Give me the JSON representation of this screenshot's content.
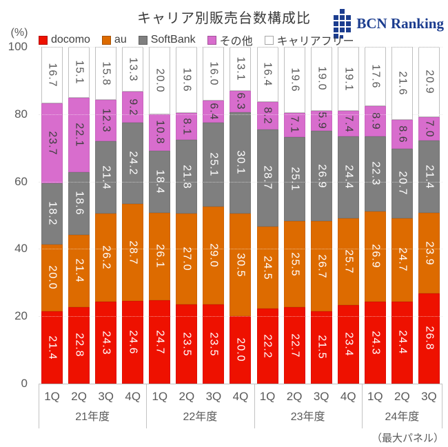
{
  "logo": {
    "text": "BCN Ranking",
    "color": "#1c3d8f"
  },
  "chart_data": {
    "type": "bar",
    "stacked": true,
    "title": "キャリア別販売台数構成比",
    "ylabel": "(%)",
    "ylim": [
      0,
      100
    ],
    "yticks": [
      100,
      80,
      60,
      40,
      20,
      0
    ],
    "grid": "horizontal-dotted",
    "legend_position": "top",
    "groups": [
      {
        "label": "21年度",
        "quarters": [
          "1Q",
          "2Q",
          "3Q",
          "4Q"
        ]
      },
      {
        "label": "22年度",
        "quarters": [
          "1Q",
          "2Q",
          "3Q",
          "4Q"
        ]
      },
      {
        "label": "23年度",
        "quarters": [
          "1Q",
          "2Q",
          "3Q",
          "4Q"
        ]
      },
      {
        "label": "24年度",
        "quarters": [
          "1Q",
          "2Q",
          "3Q"
        ]
      }
    ],
    "series": [
      {
        "name": "docomo",
        "color": "#ee1100",
        "label_color": "#ffffff",
        "values": [
          21.4,
          22.8,
          24.3,
          24.6,
          24.7,
          23.5,
          23.5,
          20.0,
          22.2,
          22.7,
          21.5,
          23.4,
          24.3,
          24.4,
          26.8
        ]
      },
      {
        "name": "au",
        "color": "#dd6b00",
        "label_color": "#ffffff",
        "values": [
          20.0,
          21.4,
          26.2,
          28.7,
          26.1,
          27.0,
          29.0,
          30.5,
          24.5,
          25.5,
          26.7,
          25.7,
          26.9,
          24.7,
          23.9
        ]
      },
      {
        "name": "SoftBank",
        "color": "#7f7f7f",
        "label_color": "#ffffff",
        "values": [
          18.2,
          18.6,
          21.4,
          24.2,
          18.4,
          21.8,
          25.1,
          30.1,
          28.7,
          25.1,
          26.9,
          24.4,
          22.3,
          20.7,
          21.4
        ]
      },
      {
        "name": "その他",
        "color": "#d86dcd",
        "label_color": "#3d3d3d",
        "values": [
          23.7,
          22.1,
          12.3,
          9.2,
          10.8,
          8.1,
          6.4,
          6.3,
          8.2,
          7.1,
          5.9,
          7.4,
          8.9,
          8.6,
          7.0
        ]
      },
      {
        "name": "キャリアフリー",
        "color": "#ffffff",
        "label_color": "#595959",
        "outlined": true,
        "values": [
          16.7,
          15.1,
          15.8,
          13.3,
          20.0,
          19.6,
          16.0,
          13.1,
          16.4,
          19.6,
          19.0,
          19.1,
          17.6,
          21.6,
          20.9
        ]
      }
    ],
    "footnote": "（最大パネル）"
  }
}
